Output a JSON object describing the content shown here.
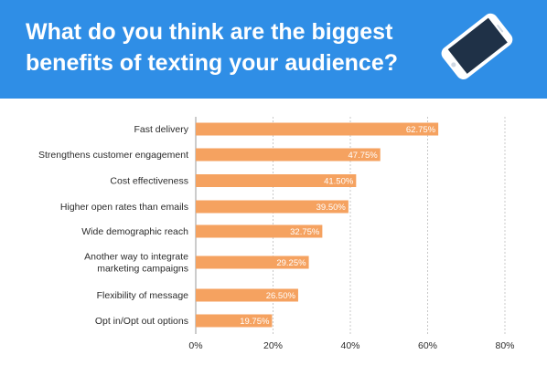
{
  "header": {
    "title_line1": "What do you think are the biggest",
    "title_line2": "benefits of texting your audience?",
    "background_color": "#2f8ee6",
    "icon": "smartphone-icon"
  },
  "chart_data": {
    "type": "bar",
    "orientation": "horizontal",
    "title": "What do you think are the biggest benefits of texting your audience?",
    "categories": [
      [
        "Fast delivery"
      ],
      [
        "Strengthens customer engagement"
      ],
      [
        "Cost effectiveness"
      ],
      [
        "Higher open rates than emails"
      ],
      [
        "Wide demographic reach"
      ],
      [
        "Another way to integrate",
        "marketing campaigns"
      ],
      [
        "Flexibility of message"
      ],
      [
        "Opt in/Opt out options"
      ]
    ],
    "values": [
      62.75,
      47.75,
      41.5,
      39.5,
      32.75,
      29.25,
      26.5,
      19.75
    ],
    "value_labels": [
      "62.75%",
      "47.75%",
      "41.50%",
      "39.50%",
      "32.75%",
      "29.25%",
      "26.50%",
      "19.75%"
    ],
    "xlim": [
      0,
      80
    ],
    "x_ticks": [
      0,
      20,
      40,
      60,
      80
    ],
    "x_tick_labels": [
      "0%",
      "20%",
      "40%",
      "60%",
      "80%"
    ],
    "grid": "vertical dashed",
    "bar_color": "#f5a260",
    "xlabel": "",
    "ylabel": ""
  }
}
